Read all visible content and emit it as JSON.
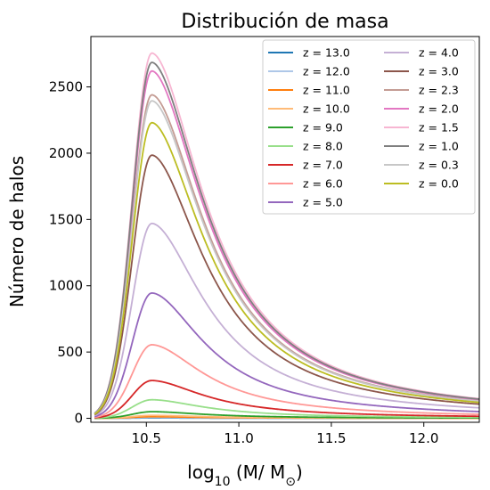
{
  "chart_data": {
    "type": "line",
    "title": "Distribución de masa",
    "xlabel": "log10 (M/ M⊙)",
    "ylabel": "Número de halos",
    "xlim": [
      10.2,
      12.3
    ],
    "ylim": [
      -30,
      2880
    ],
    "xticks": [
      "10.5",
      "11.0",
      "11.5",
      "12.0"
    ],
    "yticks": [
      "0",
      "500",
      "1000",
      "1500",
      "2000",
      "2500"
    ],
    "legend_position": "top-right",
    "legend_columns": 2,
    "peak_x": 10.53,
    "series": [
      {
        "name": "z = 13.0",
        "color": "#1f77b4",
        "peak": 3
      },
      {
        "name": "z = 12.0",
        "color": "#aec7e8",
        "peak": 6
      },
      {
        "name": "z = 11.0",
        "color": "#ff7f0e",
        "peak": 12
      },
      {
        "name": "z = 10.0",
        "color": "#ffbb78",
        "peak": 22
      },
      {
        "name": "z = 9.0",
        "color": "#2ca02c",
        "peak": 50
      },
      {
        "name": "z = 8.0",
        "color": "#98df8a",
        "peak": 140
      },
      {
        "name": "z = 7.0",
        "color": "#d62728",
        "peak": 285
      },
      {
        "name": "z = 6.0",
        "color": "#ff9896",
        "peak": 555
      },
      {
        "name": "z = 5.0",
        "color": "#9467bd",
        "peak": 945
      },
      {
        "name": "z = 4.0",
        "color": "#c5b0d5",
        "peak": 1470
      },
      {
        "name": "z = 3.0",
        "color": "#8c564b",
        "peak": 1985
      },
      {
        "name": "z = 2.3",
        "color": "#c49c94",
        "peak": 2440
      },
      {
        "name": "z = 2.0",
        "color": "#e377c2",
        "peak": 2620
      },
      {
        "name": "z = 1.5",
        "color": "#f7b6d2",
        "peak": 2755
      },
      {
        "name": "z = 1.0",
        "color": "#7f7f7f",
        "peak": 2685
      },
      {
        "name": "z = 0.3",
        "color": "#c7c7c7",
        "peak": 2395
      },
      {
        "name": "z = 0.0",
        "color": "#bcbd22",
        "peak": 2230
      }
    ]
  }
}
